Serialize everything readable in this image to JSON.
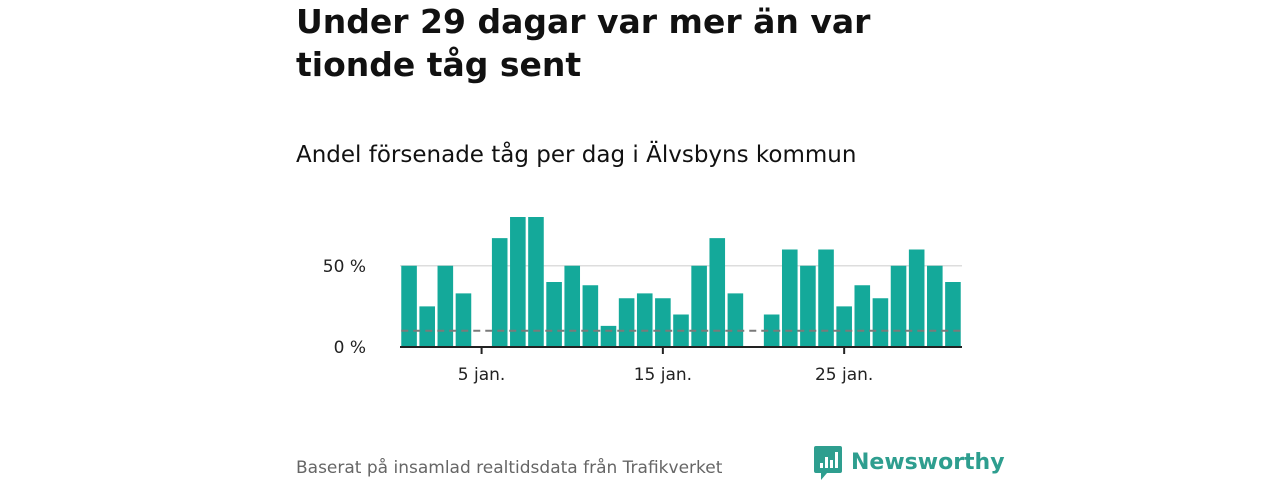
{
  "header": {
    "title": "Under 29 dagar var mer än var tionde tåg sent",
    "subtitle": "Andel försenade tåg per dag i Älvsbyns kommun"
  },
  "footer": {
    "source": "Baserat på insamlad realtidsdata från Trafikverket",
    "brand": "Newsworthy",
    "brand_icon": "newsworthy-logo-icon"
  },
  "colors": {
    "bar": "#14a99a",
    "reference_line": "#7a7a7a",
    "grid": "#dddddd",
    "axis": "#222222",
    "brand": "#2e9e8f"
  },
  "chart_data": {
    "type": "bar",
    "title": "Andel försenade tåg per dag i Älvsbyns kommun",
    "xlabel": "",
    "ylabel": "",
    "x": [
      1,
      2,
      3,
      4,
      5,
      6,
      7,
      8,
      9,
      10,
      11,
      12,
      13,
      14,
      15,
      16,
      17,
      18,
      19,
      20,
      21,
      22,
      23,
      24,
      25,
      26,
      27,
      28,
      29,
      30,
      31
    ],
    "values": [
      50,
      25,
      50,
      33,
      0,
      67,
      80,
      80,
      40,
      50,
      38,
      13,
      30,
      33,
      30,
      20,
      50,
      67,
      33,
      0,
      20,
      60,
      50,
      60,
      25,
      38,
      30,
      50,
      60,
      50,
      40
    ],
    "unit": "%",
    "ylim": [
      0,
      80
    ],
    "xlim": [
      0.5,
      31.5
    ],
    "y_ticks": [
      {
        "value": 0,
        "label": "0 %"
      },
      {
        "value": 50,
        "label": "50 %"
      }
    ],
    "x_ticks": [
      {
        "value": 5,
        "label": "5 jan."
      },
      {
        "value": 15,
        "label": "15 jan."
      },
      {
        "value": 25,
        "label": "25 jan."
      }
    ],
    "reference_line": {
      "value": 10,
      "style": "dashed"
    },
    "grid": true,
    "legend": "none"
  }
}
